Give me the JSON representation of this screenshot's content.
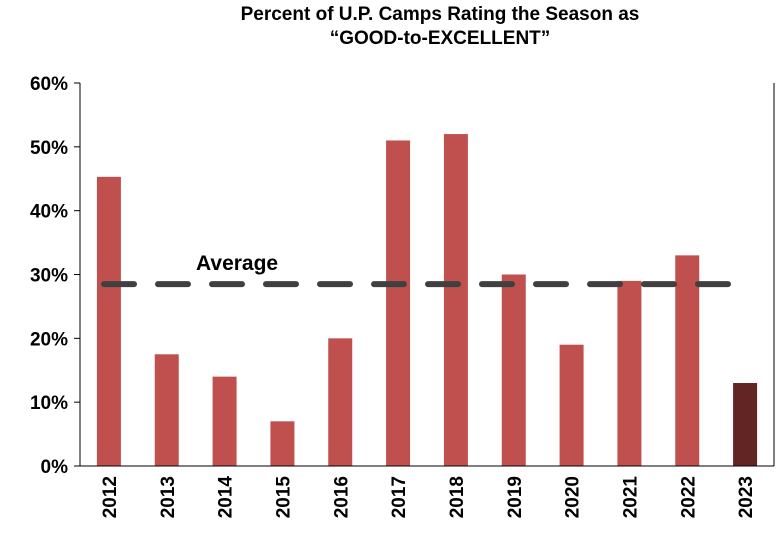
{
  "chart_data": {
    "type": "bar",
    "title": [
      "Percent of U.P. Camps Rating the Season as",
      "“GOOD-to-EXCELLENT”"
    ],
    "categories": [
      "2012",
      "2013",
      "2014",
      "2015",
      "2016",
      "2017",
      "2018",
      "2019",
      "2020",
      "2021",
      "2022",
      "2023"
    ],
    "values": [
      45.3,
      17.5,
      14,
      7,
      20,
      51,
      52,
      30,
      19,
      29,
      33,
      13
    ],
    "colors": [
      "#c0504d",
      "#c0504d",
      "#c0504d",
      "#c0504d",
      "#c0504d",
      "#c0504d",
      "#c0504d",
      "#c0504d",
      "#c0504d",
      "#c0504d",
      "#c0504d",
      "#632523"
    ],
    "ylim": [
      0,
      60
    ],
    "yticks": [
      {
        "value": 0,
        "label": "0%"
      },
      {
        "value": 10,
        "label": "10%"
      },
      {
        "value": 20,
        "label": "20%"
      },
      {
        "value": 30,
        "label": "30%"
      },
      {
        "value": 40,
        "label": "40%"
      },
      {
        "value": 50,
        "label": "50%"
      },
      {
        "value": 60,
        "label": "60%"
      }
    ],
    "average": {
      "label": "Average",
      "value": 28.5,
      "color": "#404040"
    }
  }
}
